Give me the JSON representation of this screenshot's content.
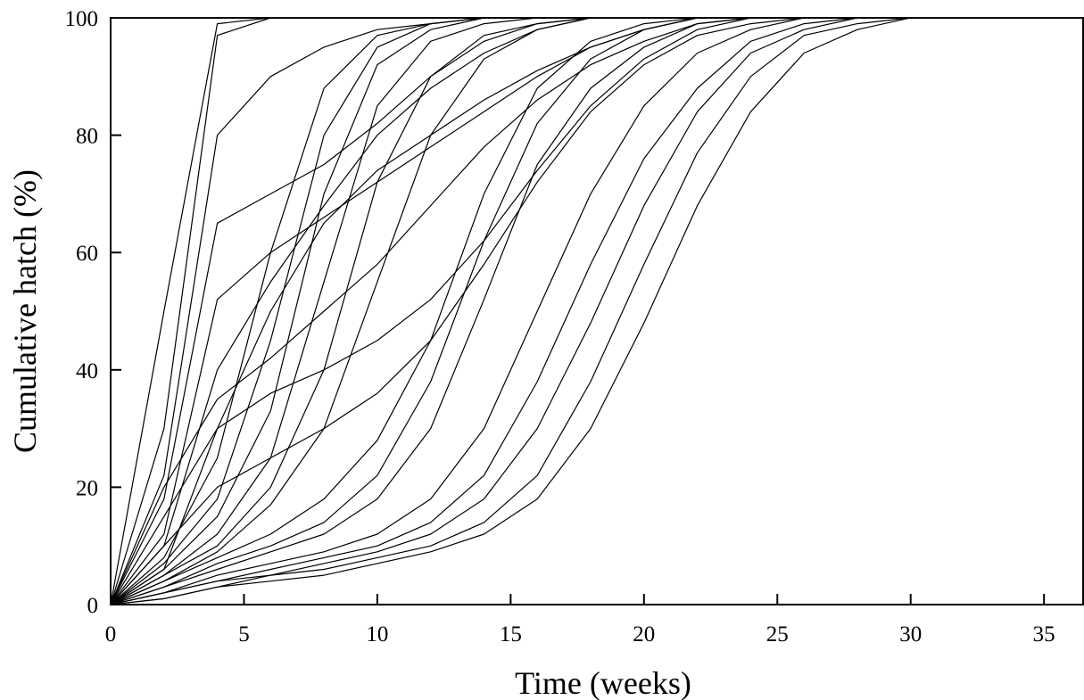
{
  "chart_data": {
    "type": "line",
    "title": "",
    "xlabel": "Time (weeks)",
    "ylabel": "Cumulative hatch (%)",
    "xlim": [
      0,
      36.5
    ],
    "ylim": [
      0,
      100
    ],
    "xticks": [
      0,
      5,
      10,
      15,
      20,
      25,
      30,
      35
    ],
    "yticks": [
      0,
      20,
      40,
      60,
      80,
      100
    ],
    "xtick_labels": [
      "0",
      "5",
      "10",
      "15",
      "20",
      "25",
      "30",
      "35"
    ],
    "ytick_labels": [
      "0",
      "20",
      "40",
      "60",
      "80",
      "100"
    ],
    "grid": false,
    "legend": "none",
    "line_color": "#000000",
    "x": [
      0,
      2,
      4,
      6,
      8,
      10,
      12,
      14,
      16,
      18,
      20,
      22,
      24,
      26,
      28,
      30,
      32,
      34,
      36
    ],
    "series": [
      {
        "values": [
          0,
          50,
          99,
          100,
          100,
          100,
          100,
          100,
          100,
          100,
          100,
          100,
          100,
          100,
          100,
          100,
          100,
          100,
          100
        ]
      },
      {
        "values": [
          0,
          30,
          97,
          100,
          100,
          100,
          100,
          100,
          100,
          100,
          100,
          100,
          100,
          100,
          100,
          100,
          100,
          100,
          100
        ]
      },
      {
        "values": [
          0,
          22,
          80,
          90,
          95,
          98,
          99,
          100,
          100,
          100,
          100,
          100,
          100,
          100,
          100,
          100,
          100,
          100,
          100
        ]
      },
      {
        "values": [
          0,
          18,
          65,
          70,
          75,
          82,
          90,
          96,
          99,
          100,
          100,
          100,
          100,
          100,
          100,
          100,
          100,
          100,
          100
        ]
      },
      {
        "values": [
          0,
          10,
          40,
          55,
          68,
          80,
          88,
          94,
          98,
          100,
          100,
          100,
          100,
          100,
          100,
          100,
          100,
          100,
          100
        ]
      },
      {
        "values": [
          0,
          8,
          25,
          60,
          88,
          97,
          99,
          100,
          100,
          100,
          100,
          100,
          100,
          100,
          100,
          100,
          100,
          100,
          100
        ]
      },
      {
        "values": [
          0,
          7,
          18,
          45,
          80,
          95,
          99,
          100,
          100,
          100,
          100,
          100,
          100,
          100,
          100,
          100,
          100,
          100,
          100
        ]
      },
      {
        "values": [
          0,
          6,
          15,
          33,
          70,
          92,
          98,
          100,
          100,
          100,
          100,
          100,
          100,
          100,
          100,
          100,
          100,
          100,
          100
        ]
      },
      {
        "values": [
          0,
          5,
          12,
          25,
          55,
          85,
          96,
          99,
          100,
          100,
          100,
          100,
          100,
          100,
          100,
          100,
          100,
          100,
          100
        ]
      },
      {
        "values": [
          0,
          5,
          10,
          20,
          40,
          72,
          90,
          97,
          99,
          100,
          100,
          100,
          100,
          100,
          100,
          100,
          100,
          100,
          100
        ]
      },
      {
        "values": [
          0,
          4,
          9,
          17,
          30,
          55,
          80,
          93,
          98,
          100,
          100,
          100,
          100,
          100,
          100,
          100,
          100,
          100,
          100
        ]
      },
      {
        "values": [
          0,
          4,
          8,
          12,
          18,
          28,
          45,
          70,
          88,
          96,
          99,
          100,
          100,
          100,
          100,
          100,
          100,
          100,
          100
        ]
      },
      {
        "values": [
          0,
          3,
          7,
          10,
          14,
          22,
          38,
          62,
          82,
          93,
          98,
          100,
          100,
          100,
          100,
          100,
          100,
          100,
          100
        ]
      },
      {
        "values": [
          0,
          3,
          6,
          9,
          12,
          18,
          30,
          52,
          75,
          88,
          95,
          99,
          100,
          100,
          100,
          100,
          100,
          100,
          100
        ]
      },
      {
        "values": [
          0,
          2,
          5,
          7,
          9,
          12,
          18,
          30,
          50,
          70,
          85,
          94,
          98,
          100,
          100,
          100,
          100,
          100,
          100
        ]
      },
      {
        "values": [
          0,
          2,
          4,
          6,
          8,
          10,
          14,
          22,
          38,
          58,
          76,
          88,
          96,
          99,
          100,
          100,
          100,
          100,
          100
        ]
      },
      {
        "values": [
          0,
          2,
          4,
          5,
          7,
          9,
          12,
          18,
          30,
          48,
          68,
          84,
          94,
          98,
          100,
          100,
          100,
          100,
          100
        ]
      },
      {
        "values": [
          0,
          1,
          3,
          5,
          6,
          8,
          10,
          14,
          22,
          38,
          58,
          77,
          90,
          97,
          99,
          100,
          100,
          100,
          100
        ]
      },
      {
        "values": [
          0,
          1,
          3,
          4,
          5,
          7,
          9,
          12,
          18,
          30,
          48,
          68,
          84,
          94,
          98,
          100,
          100,
          100,
          100
        ]
      },
      {
        "values": [
          0,
          20,
          35,
          42,
          50,
          58,
          68,
          78,
          86,
          92,
          96,
          99,
          100,
          100,
          100,
          100,
          100,
          100,
          100
        ]
      },
      {
        "values": [
          0,
          15,
          30,
          36,
          40,
          45,
          52,
          62,
          74,
          85,
          93,
          98,
          100,
          100,
          100,
          100,
          100,
          100,
          100
        ]
      },
      {
        "values": [
          0,
          10,
          20,
          25,
          30,
          36,
          45,
          58,
          72,
          84,
          92,
          97,
          99,
          100,
          100,
          100,
          100,
          100,
          100
        ]
      },
      {
        "values": [
          0,
          12,
          52,
          60,
          66,
          72,
          78,
          84,
          90,
          95,
          98,
          100,
          100,
          100,
          100,
          100,
          100,
          100,
          100
        ]
      },
      {
        "values": [
          0,
          6,
          30,
          50,
          65,
          74,
          80,
          86,
          91,
          95,
          98,
          100,
          100,
          100,
          100,
          100,
          100,
          100,
          100
        ]
      }
    ]
  }
}
